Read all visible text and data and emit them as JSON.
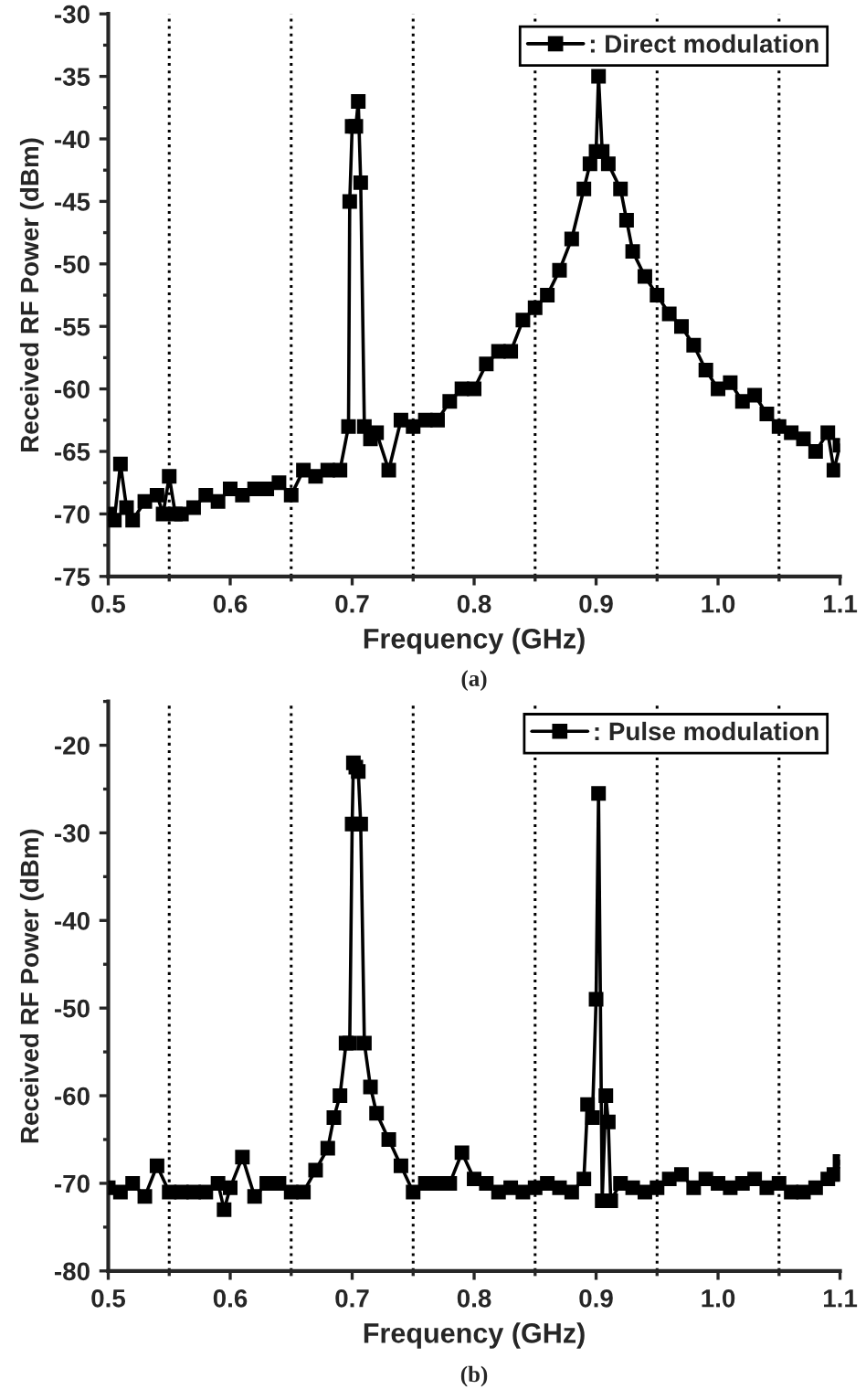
{
  "chart_data": [
    {
      "type": "line",
      "xlabel": "Frequency (GHz)",
      "ylabel": "Received RF Power (dBm)",
      "annotations": [
        "(a)"
      ],
      "xlim": [
        0.5,
        1.1
      ],
      "xticks": [
        {
          "value": 0.5,
          "label": "0.5"
        },
        {
          "value": 0.6,
          "label": "0.6"
        },
        {
          "value": 0.7,
          "label": "0.7"
        },
        {
          "value": 0.8,
          "label": "0.8"
        },
        {
          "value": 0.9,
          "label": "0.9"
        },
        {
          "value": 1.0,
          "label": "1.0"
        },
        {
          "value": 1.1,
          "label": "1.1"
        }
      ],
      "ylim": [
        -75,
        -30
      ],
      "yticks": [
        -75,
        -70,
        -65,
        -60,
        -55,
        -50,
        -45,
        -40,
        -35,
        -30
      ],
      "grid": false,
      "legend": "top right",
      "marker": "square",
      "line_style": "solid",
      "ref_lines": [
        {
          "axis": "x",
          "value": 0.55,
          "color": "#000000",
          "line_style": "dotted"
        },
        {
          "axis": "x",
          "value": 0.65,
          "color": "#000000",
          "line_style": "dotted"
        },
        {
          "axis": "x",
          "value": 0.75,
          "color": "#000000",
          "line_style": "dotted"
        },
        {
          "axis": "x",
          "value": 0.85,
          "color": "#000000",
          "line_style": "dotted"
        },
        {
          "axis": "x",
          "value": 0.95,
          "color": "#000000",
          "line_style": "dotted"
        },
        {
          "axis": "x",
          "value": 1.05,
          "color": "#000000",
          "line_style": "dotted"
        }
      ],
      "series": [
        {
          "name": ": Direct modulation",
          "color": "#000000",
          "x": [
            0.5,
            0.505,
            0.51,
            0.515,
            0.52,
            0.53,
            0.54,
            0.545,
            0.55,
            0.555,
            0.56,
            0.57,
            0.58,
            0.59,
            0.6,
            0.61,
            0.62,
            0.63,
            0.64,
            0.65,
            0.66,
            0.67,
            0.68,
            0.69,
            0.697,
            0.698,
            0.7,
            0.703,
            0.705,
            0.707,
            0.71,
            0.715,
            0.72,
            0.73,
            0.74,
            0.75,
            0.76,
            0.77,
            0.78,
            0.79,
            0.8,
            0.81,
            0.82,
            0.83,
            0.84,
            0.85,
            0.86,
            0.87,
            0.88,
            0.89,
            0.895,
            0.9,
            0.902,
            0.905,
            0.91,
            0.92,
            0.925,
            0.93,
            0.94,
            0.95,
            0.96,
            0.97,
            0.98,
            0.99,
            1.0,
            1.01,
            1.02,
            1.03,
            1.04,
            1.05,
            1.06,
            1.07,
            1.08,
            1.09,
            1.095,
            1.1
          ],
          "values": [
            -70,
            -70.5,
            -66,
            -69.5,
            -70.5,
            -69,
            -68.5,
            -70,
            -67,
            -70,
            -70,
            -69.5,
            -68.5,
            -69,
            -68,
            -68.5,
            -68,
            -68,
            -67.5,
            -68.5,
            -66.5,
            -67,
            -66.5,
            -66.5,
            -63,
            -45,
            -39,
            -39,
            -37,
            -43.5,
            -63,
            -64,
            -63.5,
            -66.5,
            -62.5,
            -63,
            -62.5,
            -62.5,
            -61,
            -60,
            -60,
            -58,
            -57,
            -57,
            -54.5,
            -53.5,
            -52.5,
            -50.5,
            -48,
            -44,
            -42,
            -41,
            -35,
            -41,
            -42,
            -44,
            -46.5,
            -49,
            -51,
            -52.5,
            -54,
            -55,
            -56.5,
            -58.5,
            -60,
            -59.5,
            -61,
            -60.5,
            -62,
            -63,
            -63.5,
            -64,
            -65,
            -63.5,
            -66.5,
            -64.5
          ]
        }
      ]
    },
    {
      "type": "line",
      "xlabel": "Frequency (GHz)",
      "ylabel": "Received RF Power (dBm)",
      "annotations": [
        "(b)"
      ],
      "xlim": [
        0.5,
        1.1
      ],
      "xticks": [
        {
          "value": 0.5,
          "label": "0.5"
        },
        {
          "value": 0.6,
          "label": "0.6"
        },
        {
          "value": 0.7,
          "label": "0.7"
        },
        {
          "value": 0.8,
          "label": "0.8"
        },
        {
          "value": 0.9,
          "label": "0.9"
        },
        {
          "value": 1.0,
          "label": "1.0"
        },
        {
          "value": 1.1,
          "label": "1.1"
        }
      ],
      "ylim": [
        -80,
        -15
      ],
      "yticks": [
        -80,
        -70,
        -60,
        -50,
        -40,
        -30,
        -20
      ],
      "grid": false,
      "legend": "top right",
      "marker": "square",
      "line_style": "solid",
      "ref_lines": [
        {
          "axis": "x",
          "value": 0.55,
          "color": "#000000",
          "line_style": "dotted"
        },
        {
          "axis": "x",
          "value": 0.65,
          "color": "#000000",
          "line_style": "dotted"
        },
        {
          "axis": "x",
          "value": 0.75,
          "color": "#000000",
          "line_style": "dotted"
        },
        {
          "axis": "x",
          "value": 0.85,
          "color": "#000000",
          "line_style": "dotted"
        },
        {
          "axis": "x",
          "value": 0.95,
          "color": "#000000",
          "line_style": "dotted"
        },
        {
          "axis": "x",
          "value": 1.05,
          "color": "#000000",
          "line_style": "dotted"
        }
      ],
      "series": [
        {
          "name": ": Pulse modulation",
          "color": "#000000",
          "x": [
            0.5,
            0.51,
            0.52,
            0.53,
            0.54,
            0.55,
            0.56,
            0.57,
            0.58,
            0.59,
            0.595,
            0.6,
            0.61,
            0.62,
            0.63,
            0.64,
            0.65,
            0.66,
            0.67,
            0.68,
            0.685,
            0.69,
            0.695,
            0.698,
            0.7,
            0.701,
            0.703,
            0.705,
            0.707,
            0.71,
            0.715,
            0.72,
            0.73,
            0.74,
            0.75,
            0.76,
            0.77,
            0.78,
            0.79,
            0.8,
            0.81,
            0.82,
            0.83,
            0.84,
            0.85,
            0.86,
            0.87,
            0.88,
            0.89,
            0.893,
            0.897,
            0.9,
            0.902,
            0.905,
            0.908,
            0.91,
            0.912,
            0.92,
            0.93,
            0.94,
            0.95,
            0.96,
            0.97,
            0.98,
            0.99,
            1.0,
            1.01,
            1.02,
            1.03,
            1.04,
            1.05,
            1.06,
            1.07,
            1.08,
            1.09,
            1.095,
            1.1
          ],
          "values": [
            -70.5,
            -71,
            -70,
            -71.5,
            -68,
            -71,
            -71,
            -71,
            -71,
            -70,
            -73,
            -70.5,
            -67,
            -71.5,
            -70,
            -70,
            -71,
            -71,
            -68.5,
            -66,
            -62.5,
            -60,
            -54,
            -54,
            -29,
            -22,
            -22.5,
            -23,
            -29,
            -54,
            -59,
            -62,
            -65,
            -68,
            -71,
            -70,
            -70,
            -70,
            -66.5,
            -69.5,
            -70,
            -71,
            -70.5,
            -71,
            -70.5,
            -70,
            -70.5,
            -71,
            -69.5,
            -61,
            -62.5,
            -49,
            -25.5,
            -72,
            -60,
            -63,
            -72,
            -70,
            -70.5,
            -71,
            -70.5,
            -69.5,
            -69,
            -70.5,
            -69.5,
            -70,
            -70.5,
            -70,
            -69.5,
            -70.5,
            -70,
            -71,
            -71,
            -70.5,
            -69.5,
            -69,
            -67.5
          ]
        }
      ]
    }
  ]
}
